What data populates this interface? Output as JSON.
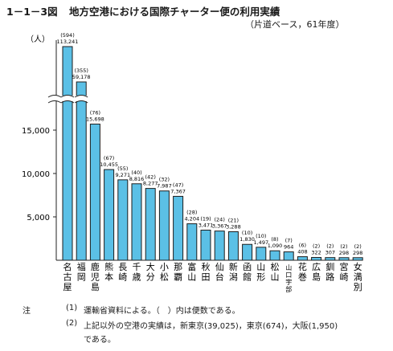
{
  "figure": {
    "number": "1－1－3図",
    "title": "地方空港における国際チャーター便の利用実績",
    "subtitle": "（片道ベース，61年度）"
  },
  "chart_data": {
    "type": "bar",
    "ylabel": "（人）",
    "ylim": [
      0,
      18500
    ],
    "yticks": [
      5000,
      10000,
      15000
    ],
    "ytick_labels": [
      "5,000",
      "10,000",
      "15,000"
    ],
    "axis_break": true,
    "categories": [
      "名古屋",
      "福岡",
      "鹿児島",
      "熊本",
      "長崎",
      "千歳",
      "大分",
      "小松",
      "那覇",
      "富山",
      "秋田",
      "仙台",
      "新潟",
      "函館",
      "山形",
      "松山",
      "山口宇部",
      "花巻",
      "広島",
      "釧路",
      "宮崎",
      "女満別"
    ],
    "values": [
      113241,
      59178,
      15698,
      10455,
      9271,
      8816,
      8277,
      7987,
      7367,
      4204,
      3471,
      3367,
      3288,
      1830,
      1497,
      1090,
      964,
      408,
      322,
      307,
      298,
      298
    ],
    "value_labels": [
      "113,241",
      "59,178",
      "15,698",
      "10,455",
      "9,271",
      "8,816",
      "8,277",
      "7,987",
      "7,367",
      "4,204",
      "3,471",
      "3,367",
      "3,288",
      "1,830",
      "1,497",
      "1,090",
      "964",
      "408",
      "322",
      "307",
      "298",
      "298"
    ],
    "flight_labels": [
      "(594)",
      "(355)",
      "(76)",
      "(67)",
      "(55)",
      "(40)",
      "(42)",
      "(32)",
      "(47)",
      "(28)",
      "(19)",
      "(24)",
      "(21)",
      "(10)",
      "(10)",
      "(8)",
      "(7)",
      "(6)",
      "(2)",
      "(2)",
      "(2)",
      "(2)"
    ],
    "bar_color": "#5bc0e6"
  },
  "notes": {
    "label": "注",
    "n1_num": "(1)",
    "n1_text": "運輸省資料による。（　）内は便数である。",
    "n2_num": "(2)",
    "n2_text": "上記以外の空港の実績は，新東京(39,025)，東京(674)，大阪(1,950)",
    "n2_cont": "である。"
  }
}
